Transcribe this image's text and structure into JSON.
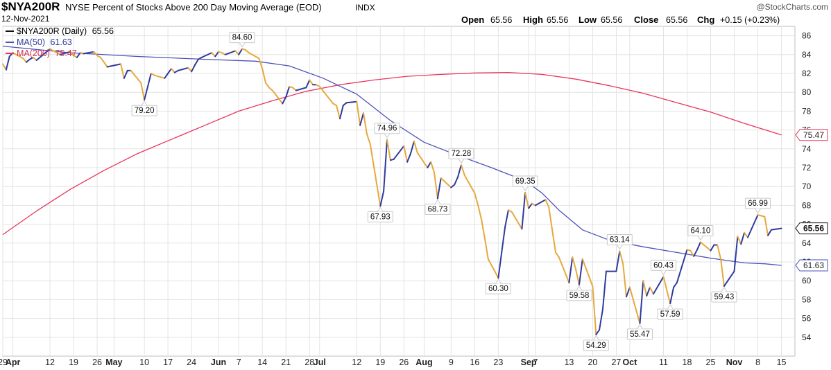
{
  "header": {
    "symbol": "$NYA200R",
    "description": "NYSE Percent of Stocks Above 200 Day Moving Average (EOD)",
    "exchange": "INDX",
    "date": "12-Nov-2021",
    "brand": "@StockCharts.com",
    "ohlc": [
      {
        "label": "Open",
        "value": "65.56"
      },
      {
        "label": "High",
        "value": "65.56"
      },
      {
        "label": "Low",
        "value": "65.56"
      },
      {
        "label": "Close",
        "value": "65.56"
      },
      {
        "label": "Chg",
        "value": "+0.15 (+0.23%)"
      }
    ]
  },
  "colors": {
    "price_up": "#2f3a9c",
    "price_down": "#e6a83c",
    "ma50": "#4a52b8",
    "ma200": "#e8355a",
    "grid": "#e3e3e3"
  },
  "chart_data": {
    "type": "line",
    "grid": true,
    "ylim": [
      52,
      87
    ],
    "y_ticks": [
      54,
      56,
      58,
      60,
      62,
      64,
      66,
      68,
      70,
      72,
      74,
      76,
      78,
      80,
      82,
      84,
      86
    ],
    "x_ticks": [
      {
        "d": 0,
        "label": "29"
      },
      {
        "d": 3,
        "label": "Apr",
        "bold": true
      },
      {
        "d": 14,
        "label": "12"
      },
      {
        "d": 21,
        "label": "19"
      },
      {
        "d": 28,
        "label": "26"
      },
      {
        "d": 33,
        "label": "May",
        "bold": true
      },
      {
        "d": 42,
        "label": "10"
      },
      {
        "d": 49,
        "label": "17"
      },
      {
        "d": 56,
        "label": "24"
      },
      {
        "d": 64,
        "label": "Jun",
        "bold": true
      },
      {
        "d": 70,
        "label": "7"
      },
      {
        "d": 77,
        "label": "14"
      },
      {
        "d": 84,
        "label": "21"
      },
      {
        "d": 91,
        "label": "28"
      },
      {
        "d": 94,
        "label": "Jul",
        "bold": true
      },
      {
        "d": 105,
        "label": "12"
      },
      {
        "d": 112,
        "label": "19"
      },
      {
        "d": 119,
        "label": "26"
      },
      {
        "d": 125,
        "label": "Aug",
        "bold": true
      },
      {
        "d": 133,
        "label": "9"
      },
      {
        "d": 140,
        "label": "16"
      },
      {
        "d": 147,
        "label": "23"
      },
      {
        "d": 156,
        "label": "Sep",
        "bold": true
      },
      {
        "d": 158,
        "label": "7"
      },
      {
        "d": 168,
        "label": "13"
      },
      {
        "d": 175,
        "label": "20"
      },
      {
        "d": 182,
        "label": "27"
      },
      {
        "d": 186,
        "label": "Oct",
        "bold": true
      },
      {
        "d": 196,
        "label": "11"
      },
      {
        "d": 203,
        "label": "18"
      },
      {
        "d": 210,
        "label": "25"
      },
      {
        "d": 217,
        "label": "Nov",
        "bold": true
      },
      {
        "d": 224,
        "label": "8"
      },
      {
        "d": 231,
        "label": "15"
      }
    ],
    "series": [
      {
        "name": "$NYA200R (Daily)",
        "last": "65.56",
        "points": [
          [
            0,
            83.0
          ],
          [
            1,
            82.4
          ],
          [
            2,
            83.8
          ],
          [
            3,
            84.2
          ],
          [
            6,
            83.6
          ],
          [
            7,
            83.2
          ],
          [
            8,
            83.5
          ],
          [
            9,
            83.7
          ],
          [
            10,
            83.4
          ],
          [
            13,
            84.3
          ],
          [
            14,
            84.6
          ],
          [
            15,
            84.4
          ],
          [
            16,
            84.2
          ],
          [
            17,
            84.0
          ],
          [
            20,
            84.3
          ],
          [
            21,
            83.9
          ],
          [
            22,
            83.7
          ],
          [
            23,
            84.2
          ],
          [
            24,
            84.1
          ],
          [
            27,
            84.3
          ],
          [
            28,
            83.9
          ],
          [
            29,
            83.7
          ],
          [
            30,
            83.2
          ],
          [
            31,
            82.7
          ],
          [
            35,
            83.0
          ],
          [
            36,
            81.5
          ],
          [
            37,
            82.3
          ],
          [
            38,
            82.3
          ],
          [
            41,
            81.0
          ],
          [
            42,
            79.2
          ],
          [
            43,
            80.6
          ],
          [
            44,
            82.0
          ],
          [
            45,
            81.8
          ],
          [
            48,
            81.5
          ],
          [
            49,
            82.0
          ],
          [
            50,
            82.5
          ],
          [
            51,
            82.1
          ],
          [
            52,
            82.3
          ],
          [
            55,
            82.6
          ],
          [
            56,
            82.2
          ],
          [
            57,
            82.9
          ],
          [
            58,
            83.5
          ],
          [
            59,
            83.7
          ],
          [
            62,
            84.2
          ],
          [
            63,
            83.8
          ],
          [
            64,
            84.3
          ],
          [
            65,
            84.2
          ],
          [
            66,
            84.0
          ],
          [
            69,
            84.4
          ],
          [
            70,
            84.0
          ],
          [
            71,
            84.6
          ],
          [
            72,
            84.5
          ],
          [
            73,
            84.2
          ],
          [
            76,
            83.6
          ],
          [
            77,
            82.5
          ],
          [
            78,
            81.0
          ],
          [
            79,
            80.5
          ],
          [
            80,
            80.2
          ],
          [
            83,
            78.8
          ],
          [
            84,
            79.5
          ],
          [
            85,
            80.6
          ],
          [
            86,
            80.5
          ],
          [
            87,
            80.2
          ],
          [
            90,
            80.5
          ],
          [
            91,
            81.3
          ],
          [
            92,
            80.8
          ],
          [
            93,
            80.8
          ],
          [
            94,
            80.6
          ],
          [
            98,
            78.8
          ],
          [
            99,
            78.6
          ],
          [
            100,
            77.2
          ],
          [
            101,
            78.6
          ],
          [
            102,
            78.9
          ],
          [
            105,
            79.0
          ],
          [
            106,
            76.5
          ],
          [
            107,
            77.8
          ],
          [
            108,
            75.6
          ],
          [
            109,
            74.5
          ],
          [
            112,
            67.93
          ],
          [
            113,
            69.5
          ],
          [
            114,
            74.96
          ],
          [
            115,
            72.8
          ],
          [
            116,
            72.9
          ],
          [
            119,
            74.3
          ],
          [
            120,
            72.6
          ],
          [
            121,
            73.5
          ],
          [
            122,
            74.8
          ],
          [
            123,
            73.6
          ],
          [
            126,
            72.0
          ],
          [
            127,
            72.6
          ],
          [
            128,
            71.5
          ],
          [
            129,
            68.73
          ],
          [
            130,
            70.9
          ],
          [
            133,
            69.9
          ],
          [
            134,
            70.2
          ],
          [
            135,
            71.0
          ],
          [
            136,
            72.28
          ],
          [
            137,
            71.2
          ],
          [
            140,
            69.3
          ],
          [
            141,
            68.0
          ],
          [
            142,
            66.5
          ],
          [
            143,
            64.5
          ],
          [
            144,
            62.3
          ],
          [
            147,
            60.3
          ],
          [
            148,
            63.0
          ],
          [
            149,
            65.7
          ],
          [
            150,
            67.5
          ],
          [
            151,
            67.3
          ],
          [
            154,
            65.5
          ],
          [
            155,
            69.35
          ],
          [
            156,
            67.7
          ],
          [
            157,
            68.2
          ],
          [
            158,
            68.0
          ],
          [
            161,
            68.6
          ],
          [
            162,
            67.8
          ],
          [
            163,
            65.4
          ],
          [
            164,
            63.0
          ],
          [
            165,
            62.5
          ],
          [
            168,
            59.8
          ],
          [
            169,
            62.5
          ],
          [
            170,
            61.2
          ],
          [
            171,
            59.58
          ],
          [
            172,
            62.3
          ],
          [
            175,
            59.4
          ],
          [
            176,
            54.29
          ],
          [
            177,
            54.8
          ],
          [
            178,
            57.0
          ],
          [
            179,
            61.0
          ],
          [
            182,
            61.0
          ],
          [
            183,
            63.14
          ],
          [
            184,
            61.8
          ],
          [
            185,
            58.3
          ],
          [
            186,
            59.3
          ],
          [
            189,
            55.47
          ],
          [
            190,
            60.0
          ],
          [
            191,
            58.4
          ],
          [
            192,
            59.3
          ],
          [
            193,
            58.6
          ],
          [
            196,
            60.43
          ],
          [
            197,
            59.0
          ],
          [
            198,
            57.59
          ],
          [
            199,
            59.3
          ],
          [
            200,
            59.8
          ],
          [
            203,
            63.3
          ],
          [
            204,
            63.2
          ],
          [
            205,
            62.6
          ],
          [
            206,
            63.3
          ],
          [
            207,
            64.1
          ],
          [
            210,
            63.2
          ],
          [
            211,
            63.8
          ],
          [
            212,
            63.8
          ],
          [
            213,
            62.3
          ],
          [
            214,
            59.43
          ],
          [
            217,
            61.0
          ],
          [
            218,
            64.7
          ],
          [
            219,
            63.9
          ],
          [
            220,
            65.1
          ],
          [
            221,
            64.6
          ],
          [
            224,
            66.99
          ],
          [
            225,
            66.9
          ],
          [
            226,
            66.8
          ],
          [
            227,
            64.8
          ],
          [
            228,
            65.41
          ],
          [
            231,
            65.56
          ]
        ]
      },
      {
        "name": "MA(50)",
        "last": "61.63",
        "points": [
          [
            0,
            84.9
          ],
          [
            20,
            84.2
          ],
          [
            40,
            83.8
          ],
          [
            60,
            83.5
          ],
          [
            75,
            83.3
          ],
          [
            85,
            82.8
          ],
          [
            95,
            81.5
          ],
          [
            105,
            79.8
          ],
          [
            115,
            77.0
          ],
          [
            125,
            74.7
          ],
          [
            135,
            73.3
          ],
          [
            145,
            72.0
          ],
          [
            155,
            70.6
          ],
          [
            160,
            69.3
          ],
          [
            165,
            67.5
          ],
          [
            172,
            65.4
          ],
          [
            180,
            64.3
          ],
          [
            190,
            63.6
          ],
          [
            200,
            63.0
          ],
          [
            210,
            62.4
          ],
          [
            220,
            61.9
          ],
          [
            226,
            61.8
          ],
          [
            231,
            61.63
          ]
        ]
      },
      {
        "name": "MA(200)",
        "last": "75.47",
        "points": [
          [
            0,
            64.9
          ],
          [
            10,
            67.4
          ],
          [
            20,
            69.7
          ],
          [
            30,
            71.7
          ],
          [
            40,
            73.5
          ],
          [
            50,
            75.0
          ],
          [
            60,
            76.5
          ],
          [
            70,
            78.0
          ],
          [
            80,
            79.1
          ],
          [
            90,
            80.1
          ],
          [
            100,
            80.8
          ],
          [
            110,
            81.3
          ],
          [
            120,
            81.7
          ],
          [
            130,
            81.9
          ],
          [
            140,
            82.05
          ],
          [
            150,
            82.1
          ],
          [
            160,
            81.9
          ],
          [
            170,
            81.4
          ],
          [
            180,
            80.7
          ],
          [
            190,
            79.9
          ],
          [
            200,
            78.9
          ],
          [
            210,
            77.9
          ],
          [
            220,
            76.7
          ],
          [
            231,
            75.47
          ]
        ]
      }
    ],
    "annotations": [
      {
        "d": 42,
        "v": 79.2,
        "label": "79.20",
        "pos": "below"
      },
      {
        "d": 71,
        "v": 84.6,
        "label": "84.60",
        "pos": "above"
      },
      {
        "d": 112,
        "v": 67.93,
        "label": "67.93",
        "pos": "below"
      },
      {
        "d": 114,
        "v": 74.96,
        "label": "74.96",
        "pos": "above"
      },
      {
        "d": 129,
        "v": 68.73,
        "label": "68.73",
        "pos": "below"
      },
      {
        "d": 136,
        "v": 72.28,
        "label": "72.28",
        "pos": "above"
      },
      {
        "d": 147,
        "v": 60.3,
        "label": "60.30",
        "pos": "below"
      },
      {
        "d": 155,
        "v": 69.35,
        "label": "69.35",
        "pos": "above"
      },
      {
        "d": 171,
        "v": 59.58,
        "label": "59.58",
        "pos": "below"
      },
      {
        "d": 176,
        "v": 54.29,
        "label": "54.29",
        "pos": "below"
      },
      {
        "d": 183,
        "v": 63.14,
        "label": "63.14",
        "pos": "above"
      },
      {
        "d": 189,
        "v": 55.47,
        "label": "55.47",
        "pos": "below"
      },
      {
        "d": 196,
        "v": 60.43,
        "label": "60.43",
        "pos": "above"
      },
      {
        "d": 198,
        "v": 57.59,
        "label": "57.59",
        "pos": "below"
      },
      {
        "d": 207,
        "v": 64.1,
        "label": "64.10",
        "pos": "above"
      },
      {
        "d": 214,
        "v": 59.43,
        "label": "59.43",
        "pos": "below"
      },
      {
        "d": 224,
        "v": 66.99,
        "label": "66.99",
        "pos": "above"
      }
    ],
    "x_domain": [
      0,
      235
    ]
  }
}
